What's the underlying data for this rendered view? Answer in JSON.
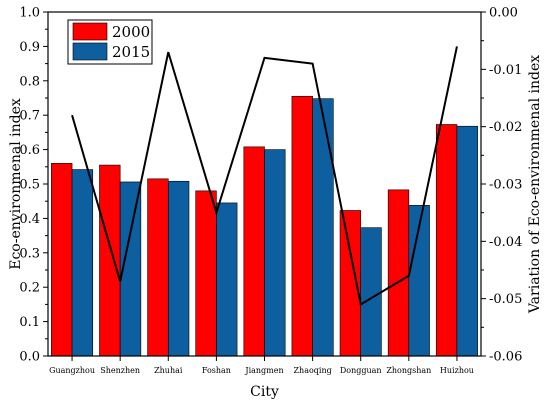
{
  "chart_data": {
    "type": "bar",
    "categories": [
      "Guangzhou",
      "Shenzhen",
      "Zhuhai",
      "Foshan",
      "Jiangmen",
      "Zhaoqing",
      "Dongguan",
      "Zhongshan",
      "Huizhou"
    ],
    "series": [
      {
        "name": "2000",
        "type": "bar",
        "axis": "left",
        "color": "#ff0000",
        "values": [
          0.56,
          0.555,
          0.515,
          0.48,
          0.608,
          0.755,
          0.423,
          0.483,
          0.673
        ]
      },
      {
        "name": "2015",
        "type": "bar",
        "axis": "left",
        "color": "#0e5fa0",
        "values": [
          0.542,
          0.506,
          0.508,
          0.445,
          0.6,
          0.748,
          0.373,
          0.438,
          0.668
        ]
      },
      {
        "name": "",
        "type": "line",
        "axis": "right",
        "color": "#000000",
        "values": [
          -0.018,
          -0.047,
          -0.007,
          -0.035,
          -0.008,
          -0.009,
          -0.051,
          -0.046,
          -0.006
        ]
      }
    ],
    "xlabel": "City",
    "ylabel": "Eco-environmenal index",
    "y2label": "Variation of Eco-environmenal index",
    "ylim": [
      0,
      1.0
    ],
    "y2lim": [
      -0.06,
      0.0
    ],
    "yticks": [
      "0.0",
      "0.1",
      "0.2",
      "0.3",
      "0.4",
      "0.5",
      "0.6",
      "0.7",
      "0.8",
      "0.9",
      "1.0"
    ],
    "y2ticks": [
      "-0.06",
      "-0.05",
      "-0.04",
      "-0.03",
      "-0.02",
      "-0.01",
      "0.00"
    ],
    "legend": {
      "position": "top-left",
      "entries": [
        "2000",
        "2015"
      ]
    },
    "grid": false
  }
}
